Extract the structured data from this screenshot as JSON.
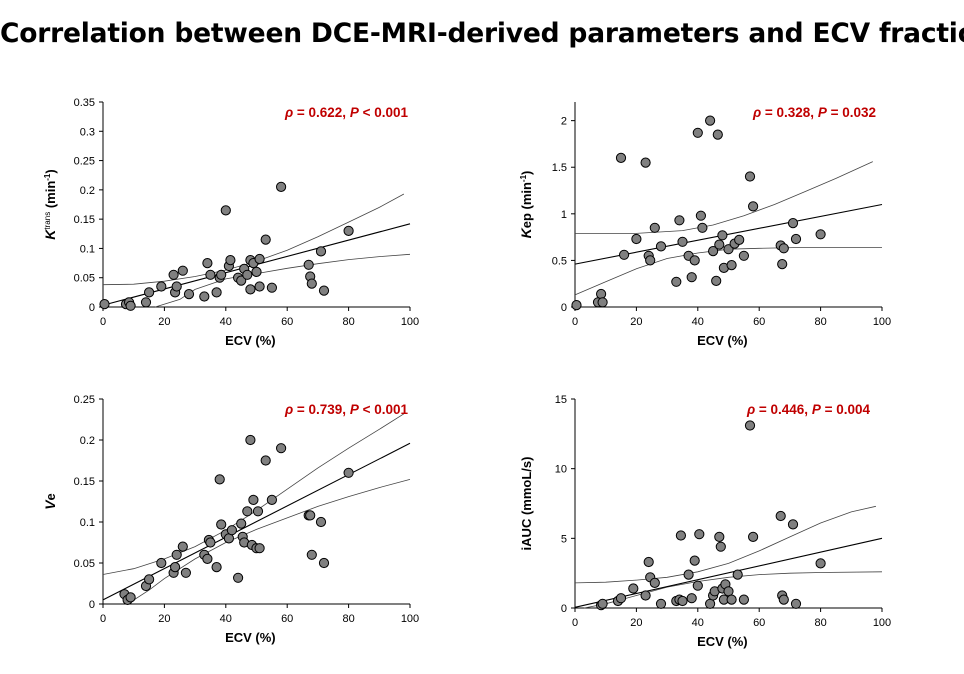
{
  "title": "Correlation between DCE-MRI-derived parameters and ECV fraction",
  "colors": {
    "annotation": "#c00000",
    "marker_fill": "#808080",
    "marker_stroke": "#000000",
    "line": "#000000"
  },
  "chart_data": [
    {
      "type": "scatter",
      "id": "ktrans",
      "title": "",
      "xlabel": "ECV (%)",
      "ylabel_main": "K",
      "ylabel_sup_text": "trans",
      "ylabel_rest": " (min",
      "ylabel_unit_sup": "-1",
      "ylabel_close": ")",
      "xlim": [
        0,
        100
      ],
      "ylim": [
        0,
        0.35
      ],
      "xticks": [
        "0",
        "20",
        "40",
        "60",
        "80",
        "100"
      ],
      "yticks": [
        "0",
        "0.05",
        "0.1",
        "0.15",
        "0.2",
        "0.25",
        "0.3",
        "0.35"
      ],
      "annotation": {
        "rho_symbol": "ρ",
        "rho_text": " = 0.622, ",
        "p_symbol": "P",
        "p_text": " < 0.001"
      },
      "points": [
        [
          0.5,
          0.005
        ],
        [
          7.5,
          0.005
        ],
        [
          8.5,
          0.008
        ],
        [
          9,
          0.002
        ],
        [
          14,
          0.008
        ],
        [
          15,
          0.025
        ],
        [
          19,
          0.035
        ],
        [
          23,
          0.055
        ],
        [
          23.5,
          0.025
        ],
        [
          24,
          0.035
        ],
        [
          26,
          0.062
        ],
        [
          28,
          0.022
        ],
        [
          33,
          0.018
        ],
        [
          34,
          0.075
        ],
        [
          35,
          0.055
        ],
        [
          37,
          0.025
        ],
        [
          38,
          0.05
        ],
        [
          38.5,
          0.055
        ],
        [
          40,
          0.165
        ],
        [
          41,
          0.07
        ],
        [
          41.5,
          0.08
        ],
        [
          44,
          0.05
        ],
        [
          45,
          0.045
        ],
        [
          46,
          0.065
        ],
        [
          47,
          0.055
        ],
        [
          48,
          0.08
        ],
        [
          48,
          0.03
        ],
        [
          49,
          0.075
        ],
        [
          50,
          0.06
        ],
        [
          51,
          0.082
        ],
        [
          51,
          0.035
        ],
        [
          53,
          0.115
        ],
        [
          55,
          0.033
        ],
        [
          58,
          0.205
        ],
        [
          67,
          0.072
        ],
        [
          67.5,
          0.052
        ],
        [
          68,
          0.04
        ],
        [
          71,
          0.095
        ],
        [
          72,
          0.028
        ],
        [
          80,
          0.13
        ]
      ],
      "fit": {
        "x": [
          0,
          100
        ],
        "y": [
          0.003,
          0.142
        ]
      },
      "ci_upper": [
        [
          0,
          0.038
        ],
        [
          10,
          0.039
        ],
        [
          20,
          0.044
        ],
        [
          30,
          0.052
        ],
        [
          40,
          0.063
        ],
        [
          50,
          0.078
        ],
        [
          60,
          0.097
        ],
        [
          70,
          0.12
        ],
        [
          80,
          0.145
        ],
        [
          90,
          0.17
        ],
        [
          98,
          0.193
        ]
      ],
      "ci_lower": [
        [
          17,
          0
        ],
        [
          25,
          0.013
        ],
        [
          30,
          0.03
        ],
        [
          40,
          0.048
        ],
        [
          50,
          0.057
        ],
        [
          60,
          0.066
        ],
        [
          70,
          0.074
        ],
        [
          80,
          0.081
        ],
        [
          90,
          0.086
        ],
        [
          100,
          0.09
        ]
      ]
    },
    {
      "type": "scatter",
      "id": "kep",
      "title": "",
      "xlabel": "ECV (%)",
      "ylabel_main": "K",
      "ylabel_sup_text": "",
      "ylabel_rest": "ep (min",
      "ylabel_unit_sup": "-1",
      "ylabel_close": ")",
      "xlim": [
        0,
        100
      ],
      "ylim": [
        0,
        2.2
      ],
      "yticks_values": [
        0,
        0.5,
        1,
        1.5,
        2
      ],
      "xticks": [
        "0",
        "20",
        "40",
        "60",
        "80",
        "100"
      ],
      "yticks": [
        "0",
        "0.5",
        "1",
        "1.5",
        "2"
      ],
      "annotation": {
        "rho_symbol": "ρ",
        "rho_text": " = 0.328, ",
        "p_symbol": "P",
        "p_text": " = 0.032"
      },
      "points": [
        [
          0.5,
          0.02
        ],
        [
          7.5,
          0.05
        ],
        [
          8.5,
          0.14
        ],
        [
          9,
          0.05
        ],
        [
          15,
          1.6
        ],
        [
          16,
          0.56
        ],
        [
          20,
          0.73
        ],
        [
          23,
          1.55
        ],
        [
          24,
          0.55
        ],
        [
          24.5,
          0.5
        ],
        [
          26,
          0.85
        ],
        [
          28,
          0.65
        ],
        [
          33,
          0.27
        ],
        [
          34,
          0.93
        ],
        [
          35,
          0.7
        ],
        [
          37,
          0.55
        ],
        [
          38,
          0.32
        ],
        [
          39,
          0.5
        ],
        [
          40,
          1.87
        ],
        [
          41,
          0.98
        ],
        [
          41.5,
          0.85
        ],
        [
          44,
          2.0
        ],
        [
          45,
          0.6
        ],
        [
          46,
          0.28
        ],
        [
          46.5,
          1.85
        ],
        [
          47,
          0.67
        ],
        [
          48,
          0.77
        ],
        [
          48.5,
          0.42
        ],
        [
          50,
          0.62
        ],
        [
          51,
          0.45
        ],
        [
          52,
          0.68
        ],
        [
          53.5,
          0.72
        ],
        [
          55,
          0.55
        ],
        [
          57,
          1.4
        ],
        [
          58,
          1.08
        ],
        [
          67,
          0.66
        ],
        [
          67.5,
          0.46
        ],
        [
          68,
          0.63
        ],
        [
          71,
          0.9
        ],
        [
          72,
          0.73
        ],
        [
          80,
          0.78
        ]
      ],
      "fit": {
        "x": [
          0,
          100
        ],
        "y": [
          0.46,
          1.1
        ]
      },
      "ci_upper": [
        [
          0,
          0.79
        ],
        [
          20,
          0.79
        ],
        [
          35,
          0.82
        ],
        [
          45,
          0.88
        ],
        [
          55,
          0.98
        ],
        [
          65,
          1.1
        ],
        [
          75,
          1.24
        ],
        [
          85,
          1.38
        ],
        [
          97,
          1.56
        ]
      ],
      "ci_lower": [
        [
          0,
          0.13
        ],
        [
          10,
          0.27
        ],
        [
          20,
          0.41
        ],
        [
          30,
          0.52
        ],
        [
          40,
          0.58
        ],
        [
          50,
          0.62
        ],
        [
          60,
          0.63
        ],
        [
          75,
          0.64
        ],
        [
          100,
          0.64
        ]
      ]
    },
    {
      "type": "scatter",
      "id": "ve",
      "title": "",
      "xlabel": "ECV (%)",
      "ylabel_main": "V",
      "ylabel_sup_text": "",
      "ylabel_rest": "e",
      "ylabel_unit_sup": "",
      "ylabel_close": "",
      "xlim": [
        0,
        100
      ],
      "ylim": [
        0,
        0.25
      ],
      "xticks": [
        "0",
        "20",
        "40",
        "60",
        "80",
        "100"
      ],
      "yticks": [
        "0",
        "0.05",
        "0.1",
        "0.15",
        "0.2",
        "0.25"
      ],
      "annotation": {
        "rho_symbol": "ρ",
        "rho_text": " = 0.739, ",
        "p_symbol": "P",
        "p_text": " < 0.001"
      },
      "points": [
        [
          7,
          0.012
        ],
        [
          8,
          0.005
        ],
        [
          9,
          0.008
        ],
        [
          14,
          0.022
        ],
        [
          15,
          0.03
        ],
        [
          19,
          0.05
        ],
        [
          23,
          0.038
        ],
        [
          23.5,
          0.045
        ],
        [
          24,
          0.06
        ],
        [
          26,
          0.07
        ],
        [
          27,
          0.038
        ],
        [
          33,
          0.06
        ],
        [
          34,
          0.055
        ],
        [
          34.5,
          0.078
        ],
        [
          35,
          0.075
        ],
        [
          37,
          0.045
        ],
        [
          38,
          0.152
        ],
        [
          38.5,
          0.097
        ],
        [
          40,
          0.085
        ],
        [
          41,
          0.08
        ],
        [
          42,
          0.09
        ],
        [
          44,
          0.032
        ],
        [
          45,
          0.098
        ],
        [
          45.5,
          0.082
        ],
        [
          46,
          0.075
        ],
        [
          47,
          0.113
        ],
        [
          48,
          0.2
        ],
        [
          48.5,
          0.072
        ],
        [
          49,
          0.127
        ],
        [
          50,
          0.068
        ],
        [
          50.5,
          0.113
        ],
        [
          51,
          0.068
        ],
        [
          53,
          0.175
        ],
        [
          55,
          0.127
        ],
        [
          58,
          0.19
        ],
        [
          67,
          0.108
        ],
        [
          67.5,
          0.108
        ],
        [
          68,
          0.06
        ],
        [
          71,
          0.1
        ],
        [
          72,
          0.05
        ],
        [
          80,
          0.16
        ]
      ],
      "fit": {
        "x": [
          0,
          100
        ],
        "y": [
          0.005,
          0.196
        ]
      },
      "ci_upper": [
        [
          0,
          0.036
        ],
        [
          10,
          0.043
        ],
        [
          20,
          0.055
        ],
        [
          30,
          0.07
        ],
        [
          40,
          0.09
        ],
        [
          50,
          0.114
        ],
        [
          60,
          0.14
        ],
        [
          70,
          0.166
        ],
        [
          80,
          0.19
        ],
        [
          90,
          0.213
        ],
        [
          98,
          0.232
        ]
      ],
      "ci_lower": [
        [
          8,
          0
        ],
        [
          15,
          0.017
        ],
        [
          20,
          0.031
        ],
        [
          30,
          0.055
        ],
        [
          40,
          0.075
        ],
        [
          50,
          0.091
        ],
        [
          60,
          0.105
        ],
        [
          70,
          0.119
        ],
        [
          80,
          0.131
        ],
        [
          90,
          0.142
        ],
        [
          100,
          0.152
        ]
      ]
    },
    {
      "type": "scatter",
      "id": "iauc",
      "title": "",
      "xlabel": "ECV (%)",
      "ylabel_main": "iAUC (mmoL/s)",
      "ylabel_sup_text": "",
      "ylabel_rest": "",
      "ylabel_unit_sup": "",
      "ylabel_close": "",
      "xlim": [
        0,
        100
      ],
      "ylim": [
        0,
        15
      ],
      "xticks": [
        "0",
        "20",
        "40",
        "60",
        "80",
        "100"
      ],
      "yticks": [
        "0",
        "5",
        "10",
        "15"
      ],
      "annotation": {
        "rho_symbol": "ρ",
        "rho_text": " = 0.446, ",
        "p_symbol": "P",
        "p_text": " = 0.004"
      },
      "points": [
        [
          8.5,
          0.2
        ],
        [
          9,
          0.3
        ],
        [
          14,
          0.5
        ],
        [
          15,
          0.7
        ],
        [
          19,
          1.4
        ],
        [
          23,
          0.9
        ],
        [
          24,
          3.3
        ],
        [
          24.5,
          2.2
        ],
        [
          26,
          1.8
        ],
        [
          28,
          0.3
        ],
        [
          33,
          0.5
        ],
        [
          34,
          0.6
        ],
        [
          34.5,
          5.2
        ],
        [
          35,
          0.5
        ],
        [
          37,
          2.4
        ],
        [
          38,
          0.7
        ],
        [
          39,
          3.4
        ],
        [
          40,
          1.6
        ],
        [
          40.5,
          5.3
        ],
        [
          44,
          0.3
        ],
        [
          45,
          0.9
        ],
        [
          45.5,
          1.2
        ],
        [
          47,
          5.1
        ],
        [
          47.5,
          4.4
        ],
        [
          48,
          1.4
        ],
        [
          48.5,
          0.6
        ],
        [
          49,
          1.7
        ],
        [
          50,
          1.2
        ],
        [
          51,
          0.6
        ],
        [
          53,
          2.4
        ],
        [
          55,
          0.6
        ],
        [
          57,
          13.1
        ],
        [
          58,
          5.1
        ],
        [
          67,
          6.6
        ],
        [
          67.5,
          0.9
        ],
        [
          68,
          0.6
        ],
        [
          71,
          6.0
        ],
        [
          72,
          0.3
        ],
        [
          80,
          3.2
        ]
      ],
      "fit": {
        "x": [
          0,
          100
        ],
        "y": [
          0.05,
          5.0
        ]
      },
      "ci_upper": [
        [
          0,
          1.8
        ],
        [
          10,
          1.85
        ],
        [
          20,
          2.0
        ],
        [
          30,
          2.2
        ],
        [
          40,
          2.6
        ],
        [
          50,
          3.2
        ],
        [
          60,
          4.1
        ],
        [
          70,
          5.1
        ],
        [
          80,
          6.1
        ],
        [
          90,
          6.9
        ],
        [
          98,
          7.3
        ]
      ],
      "ci_lower": [
        [
          3,
          0
        ],
        [
          10,
          0.3
        ],
        [
          20,
          0.9
        ],
        [
          30,
          1.5
        ],
        [
          40,
          1.9
        ],
        [
          50,
          2.2
        ],
        [
          60,
          2.4
        ],
        [
          70,
          2.5
        ],
        [
          80,
          2.55
        ],
        [
          100,
          2.6
        ]
      ]
    }
  ]
}
